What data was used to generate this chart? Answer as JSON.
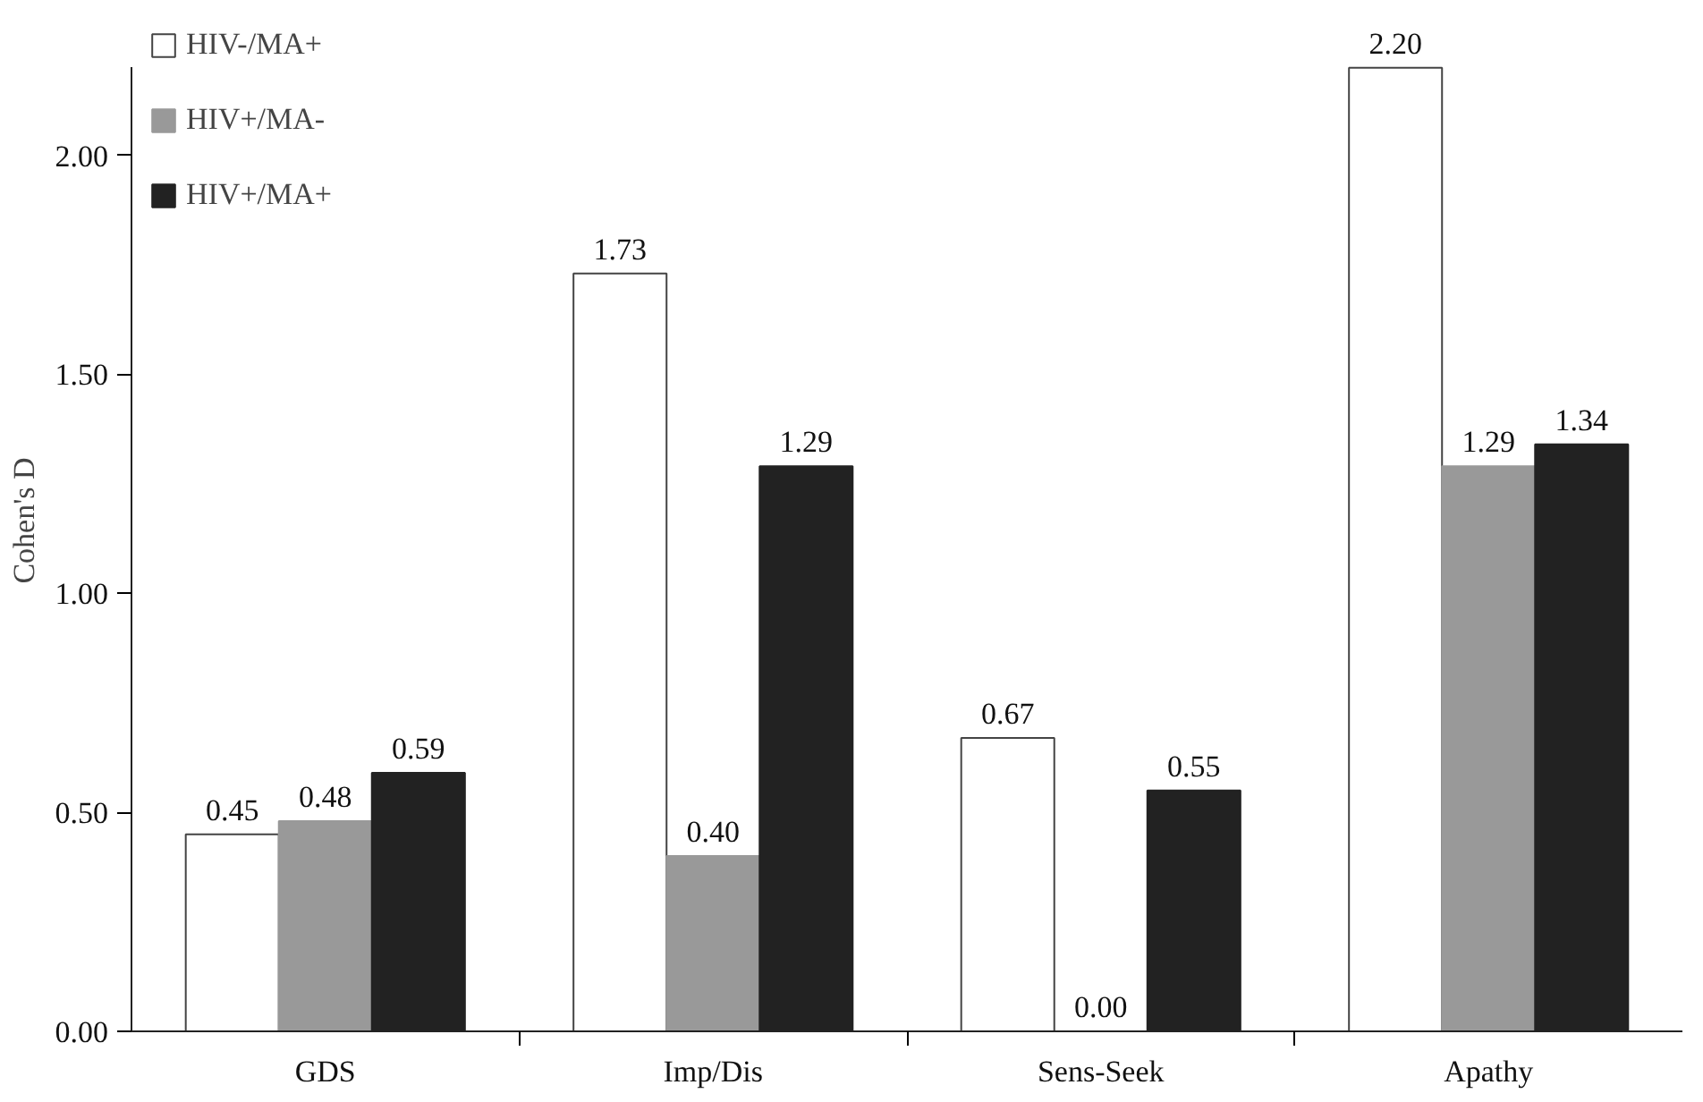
{
  "chart_data": {
    "type": "bar",
    "ylabel": "Cohen's D",
    "categories": [
      "GDS",
      "Imp/Dis",
      "Sens-Seek",
      "Apathy"
    ],
    "series": [
      {
        "name": "HIV-/MA+",
        "color": "#ffffff",
        "values": [
          0.45,
          1.73,
          0.67,
          2.2
        ],
        "value_labels": [
          "0.45",
          "1.73",
          "0.67",
          "2.20"
        ]
      },
      {
        "name": "HIV+/MA-",
        "color": "#999999",
        "values": [
          0.48,
          0.4,
          0.0,
          1.29
        ],
        "value_labels": [
          "0.48",
          "0.40",
          "0.00",
          "1.29"
        ]
      },
      {
        "name": "HIV+/MA+",
        "color": "#222222",
        "values": [
          0.59,
          1.29,
          0.55,
          1.34
        ],
        "value_labels": [
          "0.59",
          "1.29",
          "0.55",
          "1.34"
        ]
      }
    ],
    "ylim": [
      0,
      2.2
    ],
    "yticks": [
      {
        "value": 0,
        "label": "0.00"
      },
      {
        "value": 0.5,
        "label": "0.50"
      },
      {
        "value": 1,
        "label": "1.00"
      },
      {
        "value": 1.5,
        "label": "1.50"
      },
      {
        "value": 2,
        "label": "2.00"
      }
    ],
    "legend": "top left",
    "grid": false
  }
}
